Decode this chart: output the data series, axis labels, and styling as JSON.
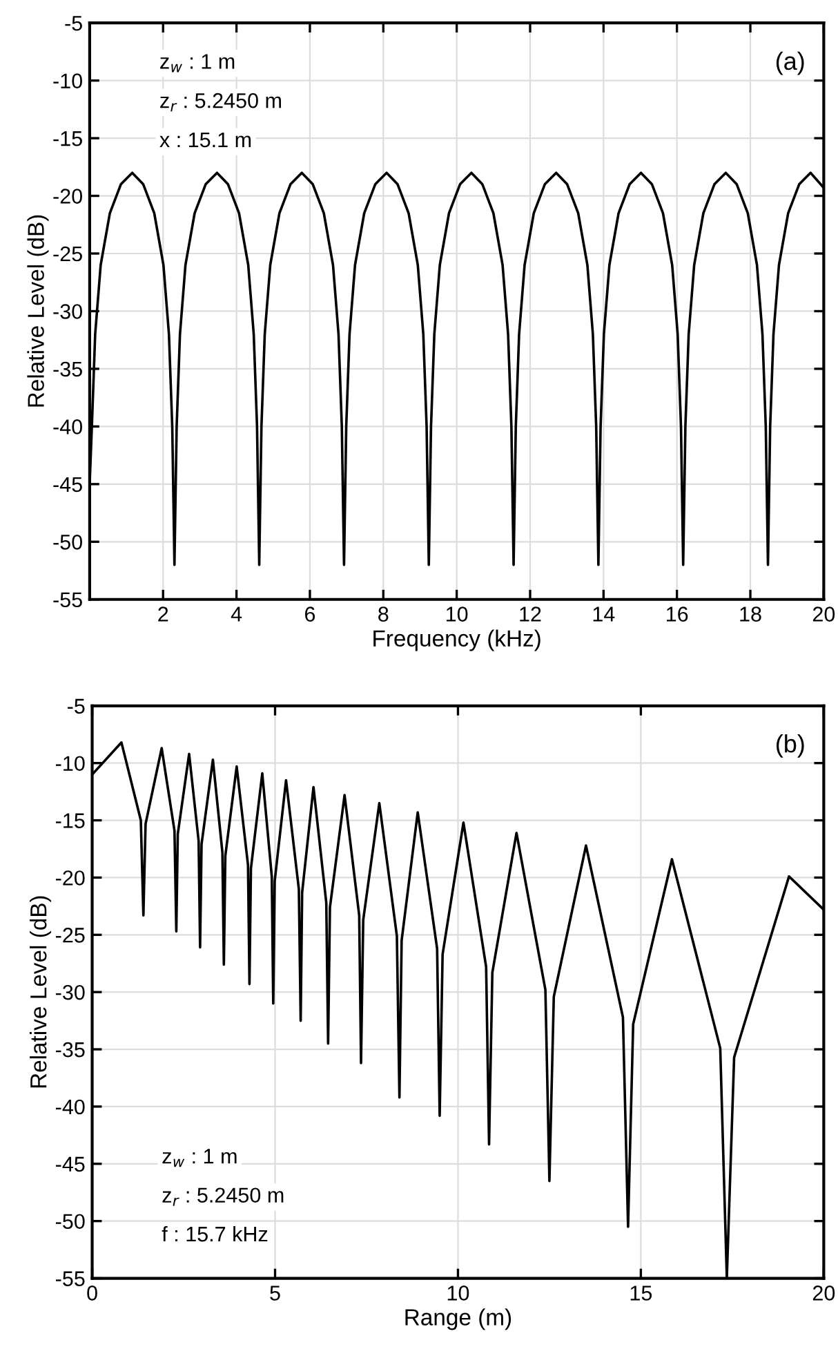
{
  "chart_data": [
    {
      "type": "line",
      "xlabel": "Frequency (kHz)",
      "ylabel": "Relative Level (dB)",
      "xlim": [
        0,
        20
      ],
      "ylim": [
        -55,
        -5
      ],
      "xticks": [
        2,
        4,
        6,
        8,
        10,
        12,
        14,
        16,
        18,
        20
      ],
      "yticks": [
        -55,
        -50,
        -45,
        -40,
        -35,
        -30,
        -25,
        -20,
        -15,
        -10,
        -5
      ],
      "grid": true,
      "marker": "none",
      "line_style": "solid",
      "annotations": [
        "z$_{w}$ : 1 m",
        "z$_{r}$ : 5.2450 m",
        "x : 15.1 m",
        "(a)"
      ],
      "series": [
        {
          "color": "#000000",
          "x": [
            0,
            0.06,
            0.15,
            0.3,
            0.55,
            0.85,
            1.16,
            1.46,
            1.76,
            2.01,
            2.16,
            2.25,
            2.31,
            2.37,
            2.46,
            2.61,
            2.86,
            3.16,
            3.47,
            3.77,
            4.07,
            4.32,
            4.47,
            4.56,
            4.62,
            4.68,
            4.77,
            4.92,
            5.17,
            5.47,
            5.78,
            6.08,
            6.38,
            6.63,
            6.78,
            6.87,
            6.93,
            6.99,
            7.08,
            7.23,
            7.48,
            7.78,
            8.09,
            8.39,
            8.69,
            8.94,
            9.09,
            9.18,
            9.24,
            9.3,
            9.39,
            9.54,
            9.79,
            10.09,
            10.4,
            10.7,
            11.0,
            11.25,
            11.4,
            11.49,
            11.55,
            11.61,
            11.7,
            11.85,
            12.1,
            12.4,
            12.71,
            13.01,
            13.31,
            13.56,
            13.71,
            13.8,
            13.86,
            13.92,
            14.01,
            14.16,
            14.41,
            14.71,
            15.02,
            15.32,
            15.62,
            15.87,
            16.02,
            16.11,
            16.17,
            16.23,
            16.32,
            16.47,
            16.72,
            17.02,
            17.33,
            17.63,
            17.93,
            18.18,
            18.33,
            18.42,
            18.48,
            18.54,
            18.63,
            18.78,
            19.03,
            19.33,
            19.64,
            20
          ],
          "values": [
            -45,
            -40,
            -32,
            -26,
            -21.5,
            -19,
            -18,
            -19,
            -21.5,
            -26,
            -32,
            -40,
            -52,
            -40,
            -32,
            -26,
            -21.5,
            -19,
            -18,
            -19,
            -21.5,
            -26,
            -32,
            -40,
            -52,
            -40,
            -32,
            -26,
            -21.5,
            -19,
            -18,
            -19,
            -21.5,
            -26,
            -32,
            -40,
            -52,
            -40,
            -32,
            -26,
            -21.5,
            -19,
            -18,
            -19,
            -21.5,
            -26,
            -32,
            -40,
            -52,
            -40,
            -32,
            -26,
            -21.5,
            -19,
            -18,
            -19,
            -21.5,
            -26,
            -32,
            -40,
            -52,
            -40,
            -32,
            -26,
            -21.5,
            -19,
            -18,
            -19,
            -21.5,
            -26,
            -32,
            -40,
            -52,
            -40,
            -32,
            -26,
            -21.5,
            -19,
            -18,
            -19,
            -21.5,
            -26,
            -32,
            -40,
            -52,
            -40,
            -32,
            -26,
            -21.5,
            -19,
            -18,
            -19,
            -21.5,
            -26,
            -32,
            -40,
            -52,
            -40,
            -32,
            -26,
            -21.5,
            -19,
            -18,
            -19.3
          ]
        }
      ]
    },
    {
      "type": "line",
      "xlabel": "Range (m)",
      "ylabel": "Relative Level (dB)",
      "xlim": [
        0,
        20
      ],
      "ylim": [
        -55,
        -5
      ],
      "xticks": [
        0,
        5,
        10,
        15,
        20
      ],
      "yticks": [
        -55,
        -50,
        -45,
        -40,
        -35,
        -30,
        -25,
        -20,
        -15,
        -10,
        -5
      ],
      "grid": true,
      "marker": "none",
      "line_style": "solid",
      "annotations": [
        "z$_{w}$ : 1 m",
        "z$_{r}$ : 5.2450 m",
        "f : 15.7 kHz",
        "(b)"
      ],
      "series": [
        {
          "color": "#000000",
          "x": [
            0,
            0.8,
            1.33,
            1.4,
            1.46,
            1.9,
            2.25,
            2.3,
            2.34,
            2.65,
            2.91,
            2.95,
            2.99,
            3.3,
            3.56,
            3.6,
            3.64,
            3.95,
            4.26,
            4.3,
            4.34,
            4.65,
            4.91,
            4.95,
            4.99,
            5.3,
            5.65,
            5.7,
            5.74,
            6.05,
            6.4,
            6.45,
            6.5,
            6.9,
            7.3,
            7.35,
            7.41,
            7.85,
            8.33,
            8.4,
            8.46,
            8.9,
            9.43,
            9.5,
            9.58,
            10.15,
            10.77,
            10.85,
            10.94,
            11.6,
            12.39,
            12.5,
            12.62,
            13.5,
            14.51,
            14.65,
            14.79,
            15.85,
            17.17,
            17.35,
            17.55,
            19.05,
            20
          ],
          "values": [
            -11,
            -8.2,
            -15.0,
            -23.3,
            -15.3,
            -8.7,
            -15.9,
            -24.7,
            -16.2,
            -9.2,
            -16.8,
            -26.1,
            -17.1,
            -9.7,
            -17.8,
            -27.6,
            -18.1,
            -10.3,
            -18.9,
            -29.3,
            -19.2,
            -10.9,
            -19.9,
            -31,
            -20.3,
            -11.5,
            -21.0,
            -32.5,
            -21.3,
            -12.1,
            -22.2,
            -34.5,
            -22.6,
            -12.8,
            -23.3,
            -36.2,
            -23.7,
            -13.5,
            -25.1,
            -39.2,
            -25.5,
            -14.3,
            -26.2,
            -40.8,
            -26.7,
            -15.2,
            -27.8,
            -43.3,
            -28.3,
            -16.1,
            -29.8,
            -46.5,
            -30.4,
            -17.2,
            -32.2,
            -50.5,
            -32.8,
            -18.4,
            -34.9,
            -55,
            -35.7,
            -19.9,
            -22.8
          ]
        }
      ]
    }
  ]
}
